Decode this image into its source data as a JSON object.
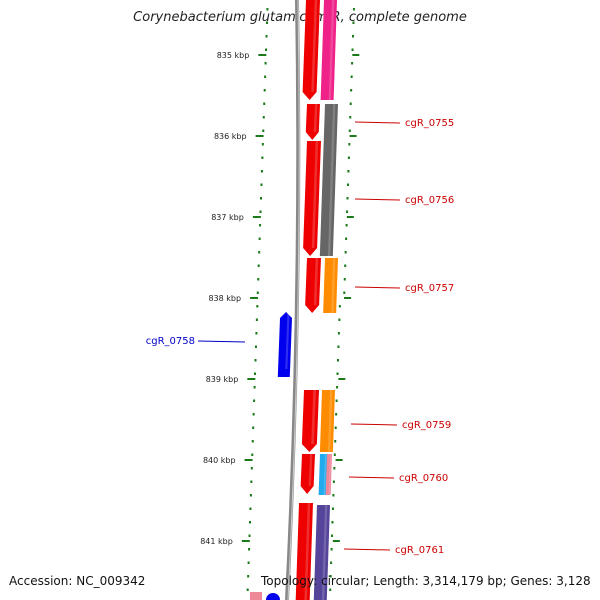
{
  "title": "Corynebacterium glutamicum R, complete genome",
  "footer": {
    "accession": "Accession: NC_009342",
    "topology": "Topology: circular; Length: 3,314,179 bp; Genes: 3,128"
  },
  "axis": {
    "ticks": [
      {
        "label": "835 kbp",
        "kbp": 835
      },
      {
        "label": "836 kbp",
        "kbp": 836
      },
      {
        "label": "837 kbp",
        "kbp": 837
      },
      {
        "label": "838 kbp",
        "kbp": 838
      },
      {
        "label": "839 kbp",
        "kbp": 839
      },
      {
        "label": "840 kbp",
        "kbp": 840
      },
      {
        "label": "841 kbp",
        "kbp": 841
      }
    ]
  },
  "labels": [
    {
      "name": "cgR_0755",
      "color": "#cc0000",
      "side": "right"
    },
    {
      "name": "cgR_0756",
      "color": "#cc0000",
      "side": "right"
    },
    {
      "name": "cgR_0757",
      "color": "#cc0000",
      "side": "right"
    },
    {
      "name": "cgR_0758",
      "color": "#0000cc",
      "side": "left"
    },
    {
      "name": "cgR_0759",
      "color": "#cc0000",
      "side": "right"
    },
    {
      "name": "cgR_0760",
      "color": "#cc0000",
      "side": "right"
    },
    {
      "name": "cgR_0761",
      "color": "#cc0000",
      "side": "right"
    }
  ],
  "colors": {
    "tick": "#1a7a1a",
    "backbone": "#888888",
    "cds_red": "#ee0000",
    "magenta": "#ee2288",
    "gray": "#666666",
    "orange": "#ff8c00",
    "blue": "#0000ee",
    "cyan": "#22aaee",
    "pink": "#ee8899",
    "slate": "#554499",
    "red_line": "#cc0000",
    "blue_line": "#0000cc"
  }
}
